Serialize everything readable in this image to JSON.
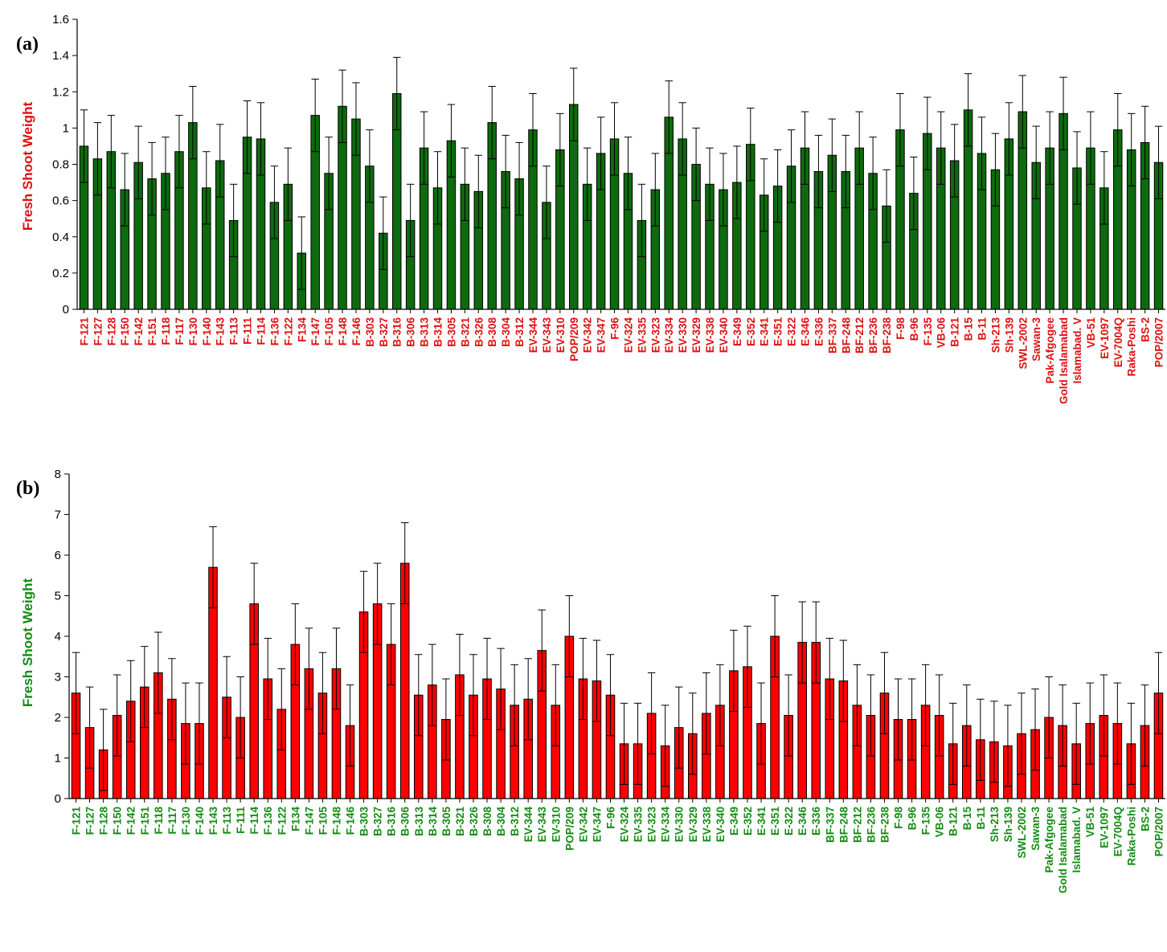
{
  "chart_data": [
    {
      "type": "bar",
      "panel_label": "(a)",
      "ylabel": "Fresh Shoot Weight",
      "ylabel_color": "#e01010",
      "bar_color": "#0e6a0e",
      "category_color": "#e01010",
      "ylim": [
        0,
        1.6
      ],
      "yticks": [
        0,
        0.2,
        0.4,
        0.6,
        0.8,
        1,
        1.2,
        1.4,
        1.6
      ],
      "ytick_labels": [
        "0",
        "0.2",
        "0.4",
        "0.6",
        "0.8",
        "1",
        "1.2",
        "1.4",
        "1.6"
      ],
      "categories": [
        "F-121",
        "F-127",
        "F-128",
        "F-150",
        "F-142",
        "F-151",
        "F-118",
        "F-117",
        "F-130",
        "F-140",
        "F-143",
        "F-113",
        "F-111",
        "F-114",
        "F-136",
        "F-122",
        "F134",
        "F-147",
        "F-105",
        "F-148",
        "F-146",
        "B-303",
        "B-327",
        "B-316",
        "B-306",
        "B-313",
        "B-314",
        "B-305",
        "B-321",
        "B-326",
        "B-308",
        "B-304",
        "B-312",
        "EV-344",
        "EV-343",
        "EV-310",
        "POP/209",
        "EV-342",
        "EV-347",
        "F-96",
        "EV-324",
        "EV-335",
        "EV-323",
        "EV-334",
        "EV-330",
        "EV-329",
        "EV-338",
        "EV-340",
        "E-349",
        "E-352",
        "E-341",
        "E-351",
        "E-322",
        "E-346",
        "E-336",
        "BF-337",
        "BF-248",
        "BF-212",
        "BF-236",
        "BF-238",
        "F-98",
        "B-96",
        "F-135",
        "VB-06",
        "B-121",
        "B-15",
        "B-11",
        "Sh-213",
        "Sh-139",
        "SWL-2002",
        "Sawan-3",
        "Pak-Afgogee",
        "Gold Isalamabad",
        "Islamabad. V",
        "VB-51",
        "EV-1097",
        "EV-7004Q",
        "Raka-Poshi",
        "BS-2",
        "POP/2007"
      ],
      "values": [
        0.9,
        0.83,
        0.87,
        0.66,
        0.81,
        0.72,
        0.75,
        0.87,
        1.03,
        0.67,
        0.82,
        0.49,
        0.95,
        0.94,
        0.59,
        0.69,
        0.31,
        1.07,
        0.75,
        1.12,
        1.05,
        0.79,
        0.42,
        1.19,
        0.49,
        0.89,
        0.67,
        0.93,
        0.69,
        0.65,
        1.03,
        0.76,
        0.72,
        0.99,
        0.59,
        0.88,
        1.13,
        0.69,
        0.86,
        0.94,
        0.75,
        0.49,
        0.66,
        1.06,
        0.94,
        0.8,
        0.69,
        0.66,
        0.7,
        0.91,
        0.63,
        0.68,
        0.79,
        0.89,
        0.76,
        0.85,
        0.76,
        0.89,
        0.75,
        0.57,
        0.99,
        0.64,
        0.97,
        0.89,
        0.82,
        1.1,
        0.86,
        0.77,
        0.94,
        1.09,
        0.81,
        0.89,
        1.08,
        0.78,
        0.89,
        0.67,
        0.99,
        0.88,
        0.92,
        0.81
      ],
      "errors": 0.2
    },
    {
      "type": "bar",
      "panel_label": "(b)",
      "ylabel": "Fresh Shoot Weight",
      "ylabel_color": "#148c14",
      "bar_color": "#ff0000",
      "category_color": "#148c14",
      "ylim": [
        0,
        8
      ],
      "yticks": [
        0,
        1,
        2,
        3,
        4,
        5,
        6,
        7,
        8
      ],
      "ytick_labels": [
        "0",
        "1",
        "2",
        "3",
        "4",
        "5",
        "6",
        "7",
        "8"
      ],
      "categories": [
        "F-121",
        "F-127",
        "F-128",
        "F-150",
        "F-142",
        "F-151",
        "F-118",
        "F-117",
        "F-130",
        "F-140",
        "F-143",
        "F-113",
        "F-111",
        "F-114",
        "F-136",
        "F-122",
        "F134",
        "F-147",
        "F-105",
        "F-148",
        "F-146",
        "B-303",
        "B-327",
        "B-316",
        "B-306",
        "B-313",
        "B-314",
        "B-305",
        "B-321",
        "B-326",
        "B-308",
        "B-304",
        "B-312",
        "EV-344",
        "EV-343",
        "EV-310",
        "POP/209",
        "EV-342",
        "EV-347",
        "F-96",
        "EV-324",
        "EV-335",
        "EV-323",
        "EV-334",
        "EV-330",
        "EV-329",
        "EV-338",
        "EV-340",
        "E-349",
        "E-352",
        "E-341",
        "E-351",
        "E-322",
        "E-346",
        "E-336",
        "BF-337",
        "BF-248",
        "BF-212",
        "BF-236",
        "BF-238",
        "F-98",
        "B-96",
        "F-135",
        "VB-06",
        "B-121",
        "B-15",
        "B-11",
        "Sh-213",
        "Sh-139",
        "SWL-2002",
        "Sawan-3",
        "Pak-Afgogee",
        "Gold Isalamabad",
        "Islamabad. V",
        "VB-51",
        "EV-1097",
        "EV-7004Q",
        "Raka-Poshi",
        "BS-2",
        "POP/2007"
      ],
      "values": [
        2.6,
        1.75,
        1.2,
        2.05,
        2.4,
        2.75,
        3.1,
        2.45,
        1.85,
        1.85,
        5.7,
        2.5,
        2.0,
        4.8,
        2.95,
        2.2,
        3.8,
        3.2,
        2.6,
        3.2,
        1.8,
        4.6,
        4.8,
        3.8,
        5.8,
        2.55,
        2.8,
        1.95,
        3.05,
        2.55,
        2.95,
        2.7,
        2.3,
        2.45,
        3.65,
        2.3,
        4.0,
        2.95,
        2.9,
        2.55,
        1.35,
        1.35,
        2.1,
        1.3,
        1.75,
        1.6,
        2.1,
        2.3,
        3.15,
        3.25,
        1.85,
        4.0,
        2.05,
        3.85,
        3.85,
        2.95,
        2.9,
        2.3,
        2.05,
        2.6,
        1.95,
        1.95,
        2.3,
        2.05,
        1.35,
        1.8,
        1.45,
        1.4,
        1.3,
        1.6,
        1.7,
        2.0,
        1.8,
        1.35,
        1.85,
        2.05,
        1.85,
        1.35,
        1.8,
        2.6
      ],
      "errors": 1.0
    }
  ]
}
